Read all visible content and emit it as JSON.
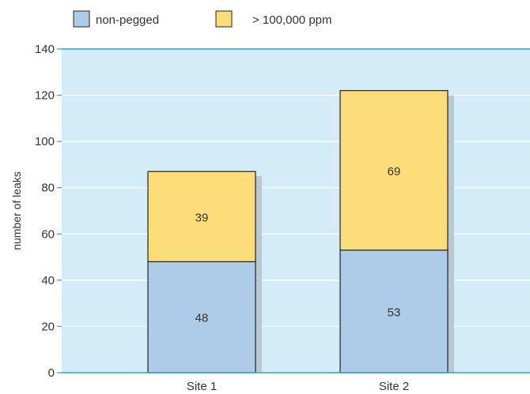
{
  "chart_data": {
    "type": "bar",
    "stacked": true,
    "categories": [
      "Site 1",
      "Site 2"
    ],
    "series": [
      {
        "name": "non-pegged",
        "values": [
          48,
          53
        ],
        "color": "#aecbe8"
      },
      {
        "name": "> 100,000 ppm",
        "values": [
          39,
          69
        ],
        "color": "#fcdd7a"
      }
    ],
    "xlabel": "",
    "ylabel": "number of leaks",
    "ylim": [
      0,
      140
    ],
    "yticks": [
      0,
      20,
      40,
      60,
      80,
      100,
      120,
      140
    ],
    "grid": true,
    "legend": "top-left",
    "colors": {
      "plot_background": "#d4ecf8",
      "grid": "#ffffff",
      "axis": "#2aa3d8",
      "bar_outline": "#222222",
      "bar_shadow": "#b9c8d3"
    }
  }
}
